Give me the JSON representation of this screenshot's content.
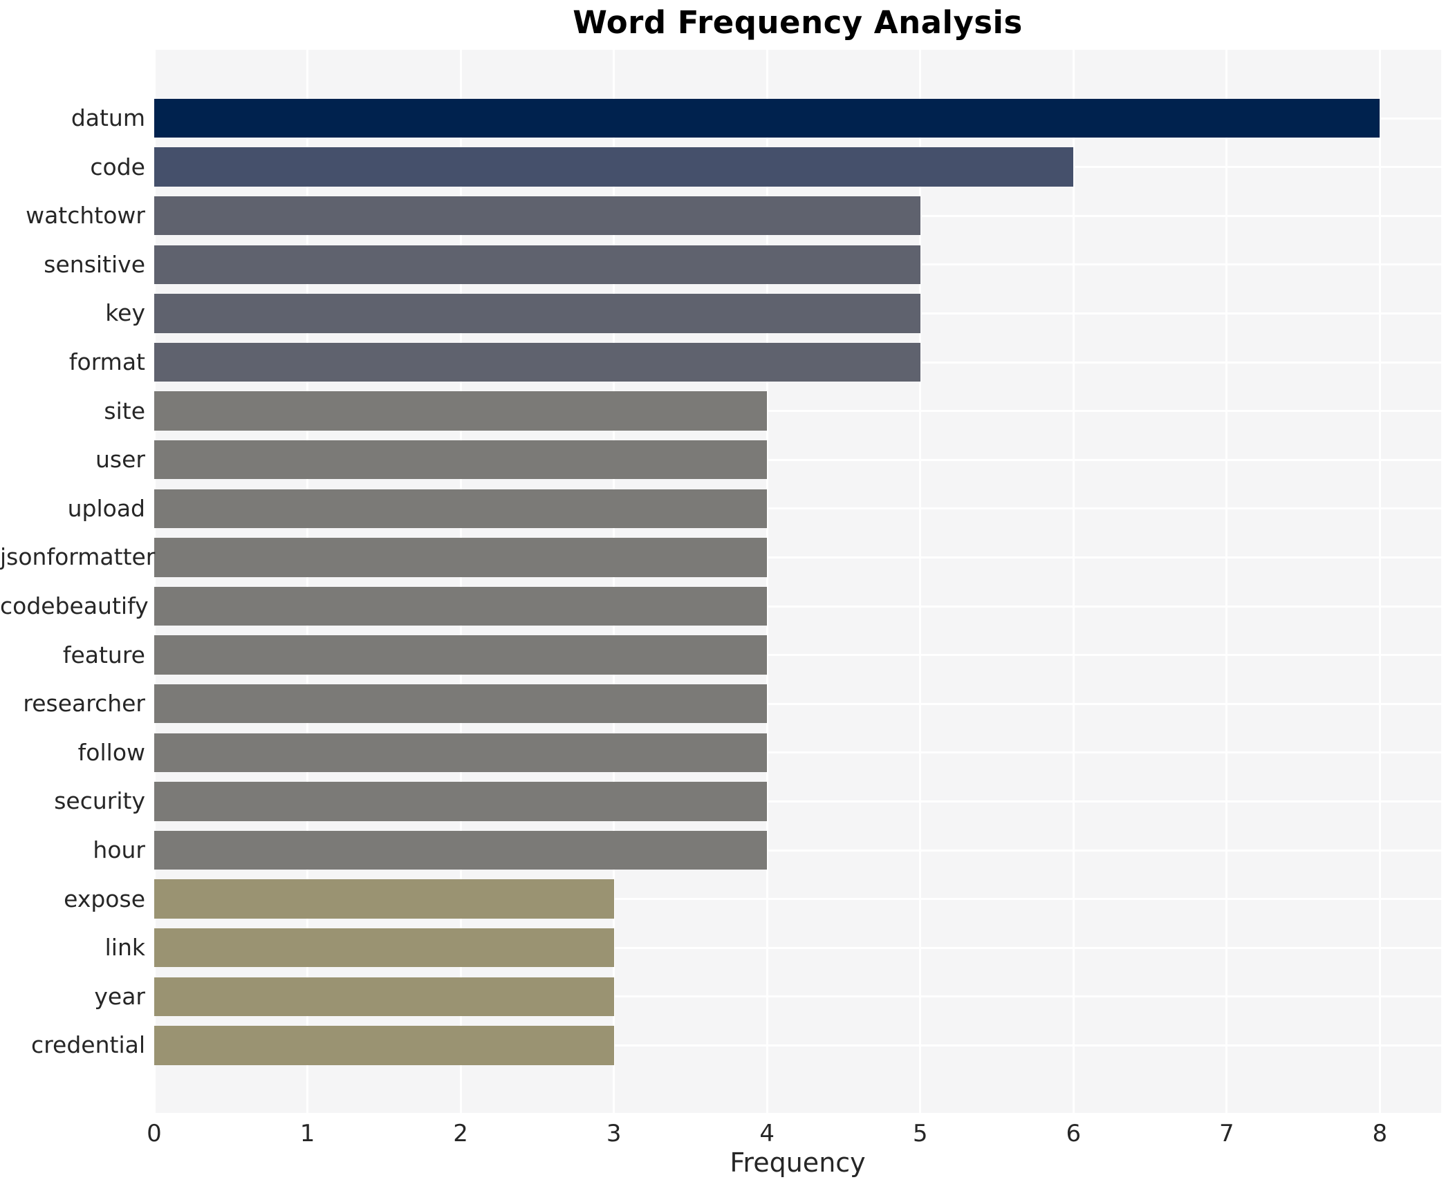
{
  "chart_data": {
    "type": "bar",
    "orientation": "horizontal",
    "title": "Word Frequency Analysis",
    "xlabel": "Frequency",
    "ylabel": "",
    "categories": [
      "datum",
      "code",
      "watchtowr",
      "sensitive",
      "key",
      "format",
      "site",
      "user",
      "upload",
      "jsonformatter",
      "codebeautify",
      "feature",
      "researcher",
      "follow",
      "security",
      "hour",
      "expose",
      "link",
      "year",
      "credential"
    ],
    "values": [
      8,
      6,
      5,
      5,
      5,
      5,
      4,
      4,
      4,
      4,
      4,
      4,
      4,
      4,
      4,
      4,
      3,
      3,
      3,
      3
    ],
    "bar_colors": [
      "#00224e",
      "#45506b",
      "#5f626e",
      "#5f626e",
      "#5f626e",
      "#5f626e",
      "#7b7a77",
      "#7b7a77",
      "#7b7a77",
      "#7b7a77",
      "#7b7a77",
      "#7b7a77",
      "#7b7a77",
      "#7b7a77",
      "#7b7a77",
      "#7b7a77",
      "#9a9372",
      "#9a9372",
      "#9a9372",
      "#9a9372"
    ],
    "xlim": [
      0,
      8.4
    ],
    "xticks": [
      0,
      1,
      2,
      3,
      4,
      5,
      6,
      7,
      8
    ],
    "grid": true,
    "legend_position": "none",
    "plot_background_color": "#f5f5f6",
    "gridline_color": "#ffffff",
    "tick_label_color": "#262626",
    "title_color": "#000000"
  }
}
